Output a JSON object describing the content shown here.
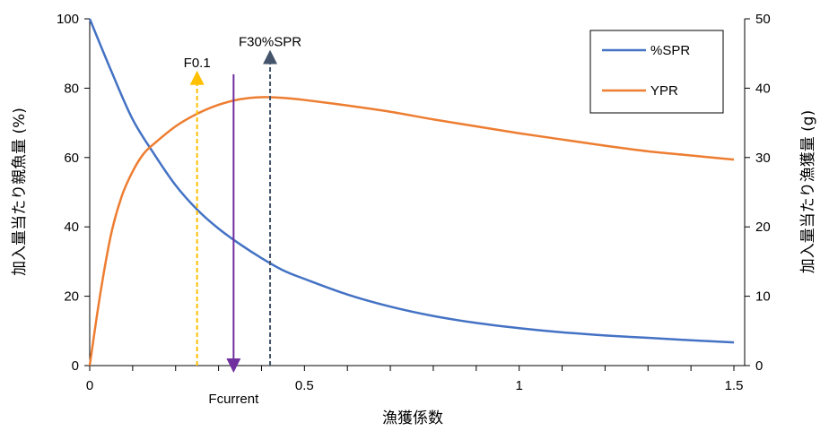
{
  "chart_data": {
    "type": "line",
    "xlabel": "漁獲係数",
    "ylabel_left": "加入量当たり親魚量 (%)",
    "ylabel_right": "加入量当たり漁獲量 (g)",
    "xlim": [
      0,
      1.5
    ],
    "ylim_left": [
      0,
      100
    ],
    "ylim_right": [
      0,
      50
    ],
    "x_ticks": [
      0,
      0.5,
      1,
      1.5
    ],
    "x_tick_labels": [
      "0",
      "0.5",
      "1",
      "1.5"
    ],
    "y_left_ticks": [
      0,
      20,
      40,
      60,
      80,
      100
    ],
    "y_left_tick_labels": [
      "0",
      "20",
      "40",
      "60",
      "80",
      "100"
    ],
    "y_right_ticks": [
      0,
      10,
      20,
      30,
      40,
      50
    ],
    "y_right_tick_labels": [
      "0",
      "10",
      "20",
      "30",
      "40",
      "50"
    ],
    "grid": false,
    "legend_position": "top-right",
    "series": [
      {
        "name": "%SPR",
        "axis": "left",
        "color": "#4472C4",
        "x": [
          0,
          0.05,
          0.1,
          0.15,
          0.2,
          0.25,
          0.3,
          0.35,
          0.4,
          0.45,
          0.5,
          0.6,
          0.7,
          0.8,
          0.9,
          1.0,
          1.1,
          1.2,
          1.3,
          1.4,
          1.5
        ],
        "values": [
          100,
          85,
          71,
          61,
          52,
          45,
          39.5,
          35,
          31,
          27.5,
          25,
          20.5,
          17,
          14.3,
          12.3,
          10.8,
          9.6,
          8.7,
          8,
          7.3,
          6.7
        ]
      },
      {
        "name": "YPR",
        "axis": "right",
        "color": "#ED7D31",
        "x": [
          0,
          0.025,
          0.05,
          0.075,
          0.1,
          0.125,
          0.15,
          0.2,
          0.25,
          0.3,
          0.35,
          0.4,
          0.45,
          0.5,
          0.6,
          0.7,
          0.8,
          0.9,
          1.0,
          1.1,
          1.2,
          1.3,
          1.4,
          1.5
        ],
        "values": [
          0,
          10.5,
          19,
          24.5,
          28,
          30.5,
          32,
          34.5,
          36.3,
          37.6,
          38.4,
          38.7,
          38.6,
          38.3,
          37.5,
          36.6,
          35.5,
          34.5,
          33.5,
          32.6,
          31.7,
          30.9,
          30.3,
          29.7
        ]
      }
    ],
    "annotations": [
      {
        "label": "F0.1",
        "x": 0.25,
        "color": "#FFC000",
        "style": "dashed",
        "direction": "up",
        "from": 0,
        "to": 83,
        "label_pos": "above"
      },
      {
        "label": "F30%SPR",
        "x": 0.42,
        "color": "#44546A",
        "style": "dashed",
        "direction": "up",
        "from": 0,
        "to": 89,
        "label_pos": "above"
      },
      {
        "label": "Fcurrent",
        "x": 0.335,
        "color": "#7030A0",
        "style": "solid",
        "direction": "down",
        "from": 84,
        "to": 0,
        "label_pos": "below"
      }
    ]
  }
}
